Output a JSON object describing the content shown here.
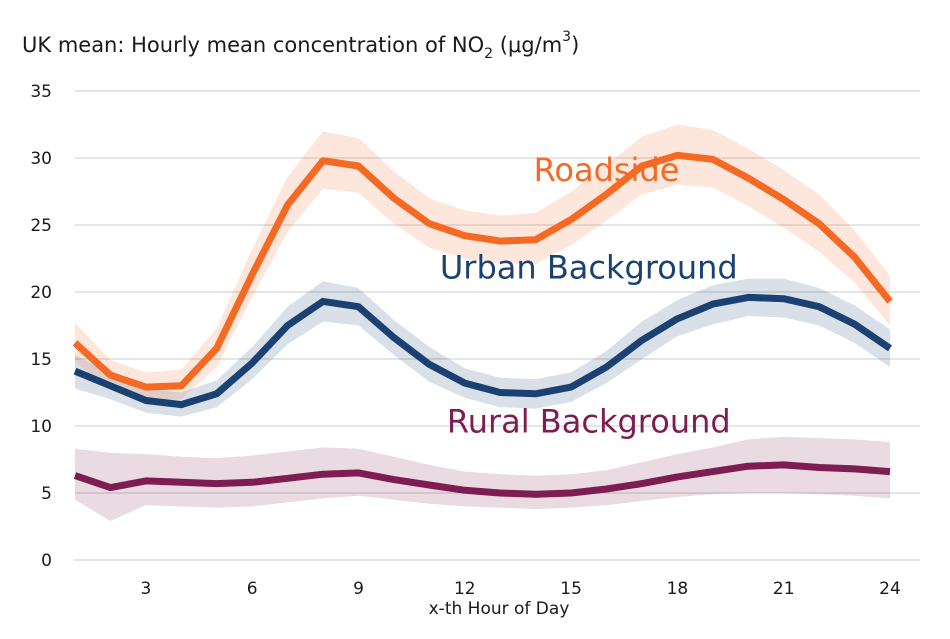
{
  "chart_data": {
    "type": "line",
    "title": {
      "prefix": "UK mean: Hourly mean concentration of NO",
      "sub": "2",
      "units_open": " (μg/m",
      "sup": "3",
      "units_close": ")"
    },
    "xlabel": "x-th Hour of Day",
    "ylabel": "",
    "x": [
      1,
      2,
      3,
      4,
      5,
      6,
      7,
      8,
      9,
      10,
      11,
      12,
      13,
      14,
      15,
      16,
      17,
      18,
      19,
      20,
      21,
      22,
      23,
      24
    ],
    "xlim": [
      1,
      24
    ],
    "ylim": [
      0,
      35
    ],
    "xticks": [
      3,
      6,
      9,
      12,
      15,
      18,
      21,
      24
    ],
    "yticks": [
      0,
      5,
      10,
      15,
      20,
      25,
      30,
      35
    ],
    "grid": "horizontal",
    "series": [
      {
        "name": "Rural Background",
        "color": "#7d1d52",
        "label_at": {
          "x": 15.5,
          "y": 9.5
        },
        "values": [
          6.3,
          5.4,
          5.9,
          5.8,
          5.7,
          5.8,
          6.1,
          6.4,
          6.5,
          6.0,
          5.6,
          5.2,
          5.0,
          4.9,
          5.0,
          5.3,
          5.7,
          6.2,
          6.6,
          7.0,
          7.1,
          6.9,
          6.8,
          6.6
        ],
        "upper": [
          8.3,
          8.0,
          7.9,
          7.7,
          7.6,
          7.8,
          8.1,
          8.4,
          8.3,
          7.7,
          7.1,
          6.6,
          6.4,
          6.3,
          6.4,
          6.7,
          7.3,
          7.9,
          8.4,
          9.0,
          9.2,
          9.1,
          9.0,
          8.8
        ],
        "lower": [
          4.5,
          2.9,
          4.1,
          4.0,
          3.9,
          4.0,
          4.3,
          4.6,
          4.8,
          4.5,
          4.2,
          4.0,
          3.9,
          3.8,
          3.9,
          4.1,
          4.4,
          4.7,
          4.9,
          5.0,
          5.0,
          4.9,
          4.8,
          4.6
        ]
      },
      {
        "name": "Urban Background",
        "color": "#1a4171",
        "label_at": {
          "x": 15.5,
          "y": 21.0
        },
        "values": [
          14.1,
          13.0,
          11.9,
          11.6,
          12.4,
          14.7,
          17.5,
          19.3,
          18.9,
          16.6,
          14.6,
          13.2,
          12.5,
          12.4,
          12.9,
          14.4,
          16.4,
          18.0,
          19.1,
          19.6,
          19.5,
          18.9,
          17.6,
          15.8
        ],
        "upper": [
          15.3,
          14.0,
          12.8,
          12.5,
          13.4,
          15.9,
          18.9,
          20.8,
          20.3,
          17.9,
          15.9,
          14.3,
          13.6,
          13.5,
          14.0,
          15.6,
          17.8,
          19.4,
          20.5,
          21.0,
          21.0,
          20.3,
          19.0,
          17.2
        ],
        "lower": [
          12.8,
          12.0,
          11.0,
          10.7,
          11.4,
          13.5,
          16.1,
          17.8,
          17.5,
          15.3,
          13.3,
          12.1,
          11.4,
          11.3,
          11.8,
          13.2,
          15.0,
          16.7,
          17.6,
          18.2,
          18.1,
          17.5,
          16.2,
          14.4
        ]
      },
      {
        "name": "Roadside",
        "color": "#f46a25",
        "label_at": {
          "x": 16.0,
          "y": 28.3
        },
        "values": [
          16.2,
          13.8,
          12.9,
          13.0,
          15.8,
          21.3,
          26.5,
          29.8,
          29.4,
          27.0,
          25.1,
          24.2,
          23.8,
          23.9,
          25.4,
          27.3,
          29.4,
          30.2,
          29.9,
          28.5,
          26.9,
          25.1,
          22.6,
          19.3
        ],
        "upper": [
          17.7,
          14.9,
          14.0,
          14.2,
          17.3,
          23.2,
          28.6,
          32.0,
          31.5,
          29.0,
          27.0,
          26.1,
          25.7,
          25.9,
          27.5,
          29.5,
          31.6,
          32.5,
          32.1,
          30.7,
          29.1,
          27.3,
          24.6,
          21.2
        ],
        "lower": [
          14.8,
          12.7,
          11.9,
          12.0,
          14.4,
          19.6,
          24.5,
          27.7,
          27.4,
          25.1,
          23.3,
          22.5,
          22.1,
          22.1,
          23.5,
          25.3,
          27.3,
          28.0,
          27.8,
          26.4,
          24.8,
          23.0,
          20.7,
          17.5
        ]
      }
    ]
  }
}
